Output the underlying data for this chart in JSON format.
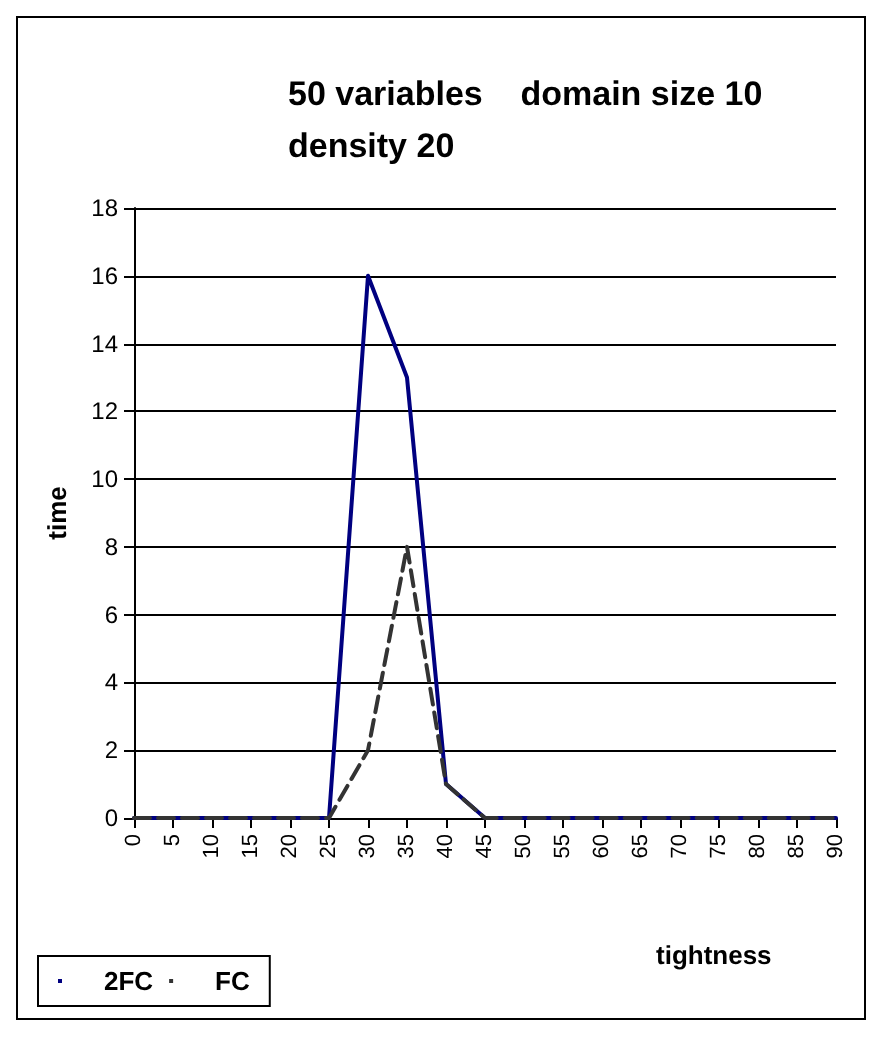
{
  "chart_data": {
    "type": "line",
    "title": "50 variables    domain size 10\ndensity 20",
    "xlabel": "tightness",
    "ylabel": "time",
    "categories": [
      "0",
      "5",
      "10",
      "15",
      "20",
      "25",
      "30",
      "35",
      "40",
      "45",
      "50",
      "55",
      "60",
      "65",
      "70",
      "75",
      "80",
      "85",
      "90"
    ],
    "series": [
      {
        "name": "2FC",
        "color": "#000080",
        "line_style": "solid",
        "values": [
          0,
          0,
          0,
          0,
          0,
          0,
          16,
          13,
          1,
          0,
          0,
          0,
          0,
          0,
          0,
          0,
          0,
          0,
          0
        ]
      },
      {
        "name": "FC",
        "color": "#333333",
        "line_style": "dashed",
        "values": [
          0,
          0,
          0,
          0,
          0,
          0,
          2,
          8,
          1,
          0,
          0,
          0,
          0,
          0,
          0,
          0,
          0,
          0,
          0
        ]
      }
    ],
    "ylim": [
      0,
      18
    ],
    "yticks": [
      0,
      2,
      4,
      6,
      8,
      10,
      12,
      14,
      16,
      18
    ],
    "grid": "y",
    "legend": "bottom left",
    "marker": "none"
  }
}
